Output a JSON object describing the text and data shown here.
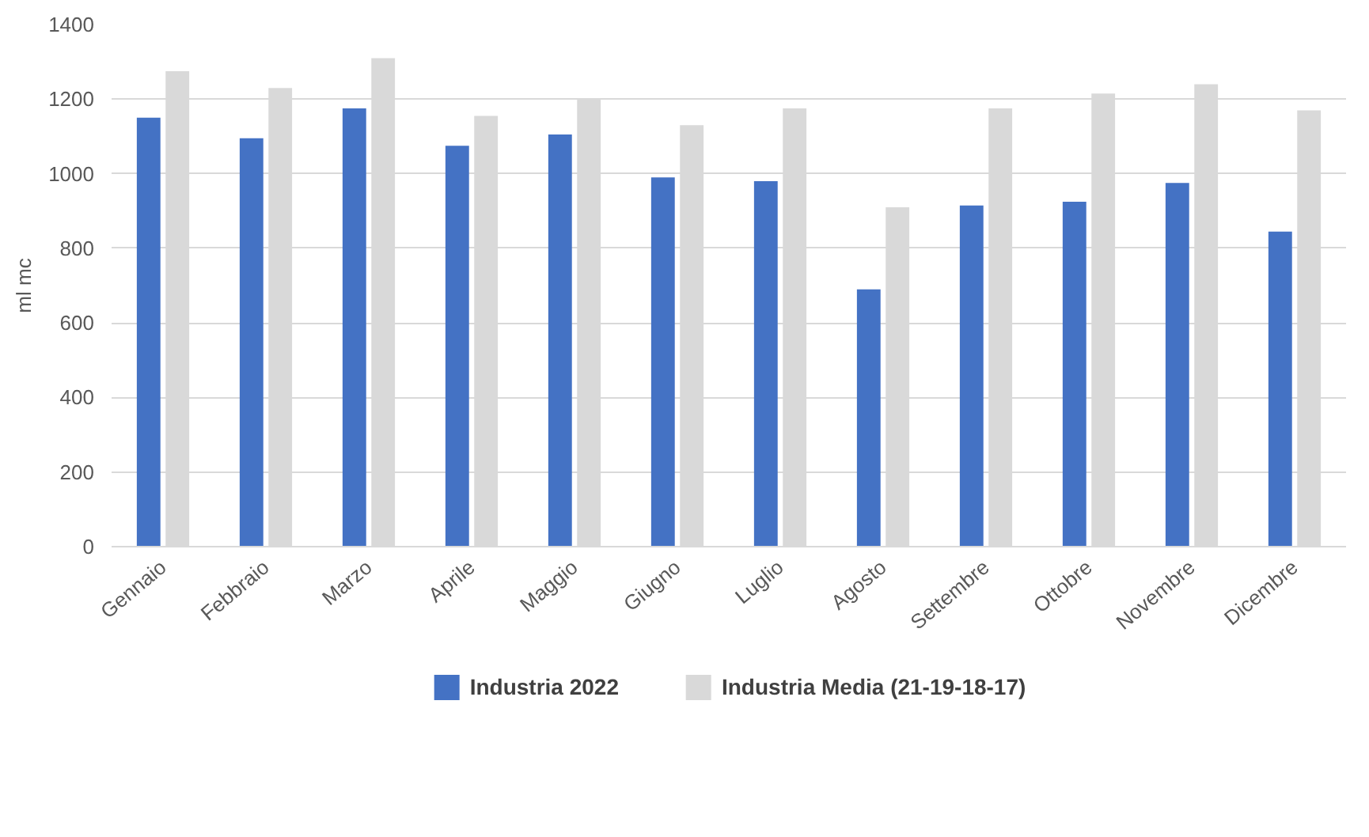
{
  "chart_data": {
    "type": "bar",
    "ylabel": "ml mc",
    "categories": [
      "Gennaio",
      "Febbraio",
      "Marzo",
      "Aprile",
      "Maggio",
      "Giugno",
      "Luglio",
      "Agosto",
      "Settembre",
      "Ottobre",
      "Novembre",
      "Dicembre"
    ],
    "series": [
      {
        "name": "Industria 2022",
        "color": "#4472c4",
        "values": [
          1150,
          1095,
          1175,
          1075,
          1105,
          990,
          980,
          690,
          915,
          925,
          975,
          845
        ]
      },
      {
        "name": "Industria Media (21-19-18-17)",
        "color": "#d9d9d9",
        "values": [
          1275,
          1230,
          1310,
          1155,
          1200,
          1130,
          1175,
          910,
          1175,
          1215,
          1240,
          1170
        ]
      }
    ],
    "ylim": [
      0,
      1400
    ],
    "yticks": [
      0,
      200,
      400,
      600,
      800,
      1000,
      1200,
      1400
    ],
    "grid": "y",
    "legend": "bottom"
  }
}
